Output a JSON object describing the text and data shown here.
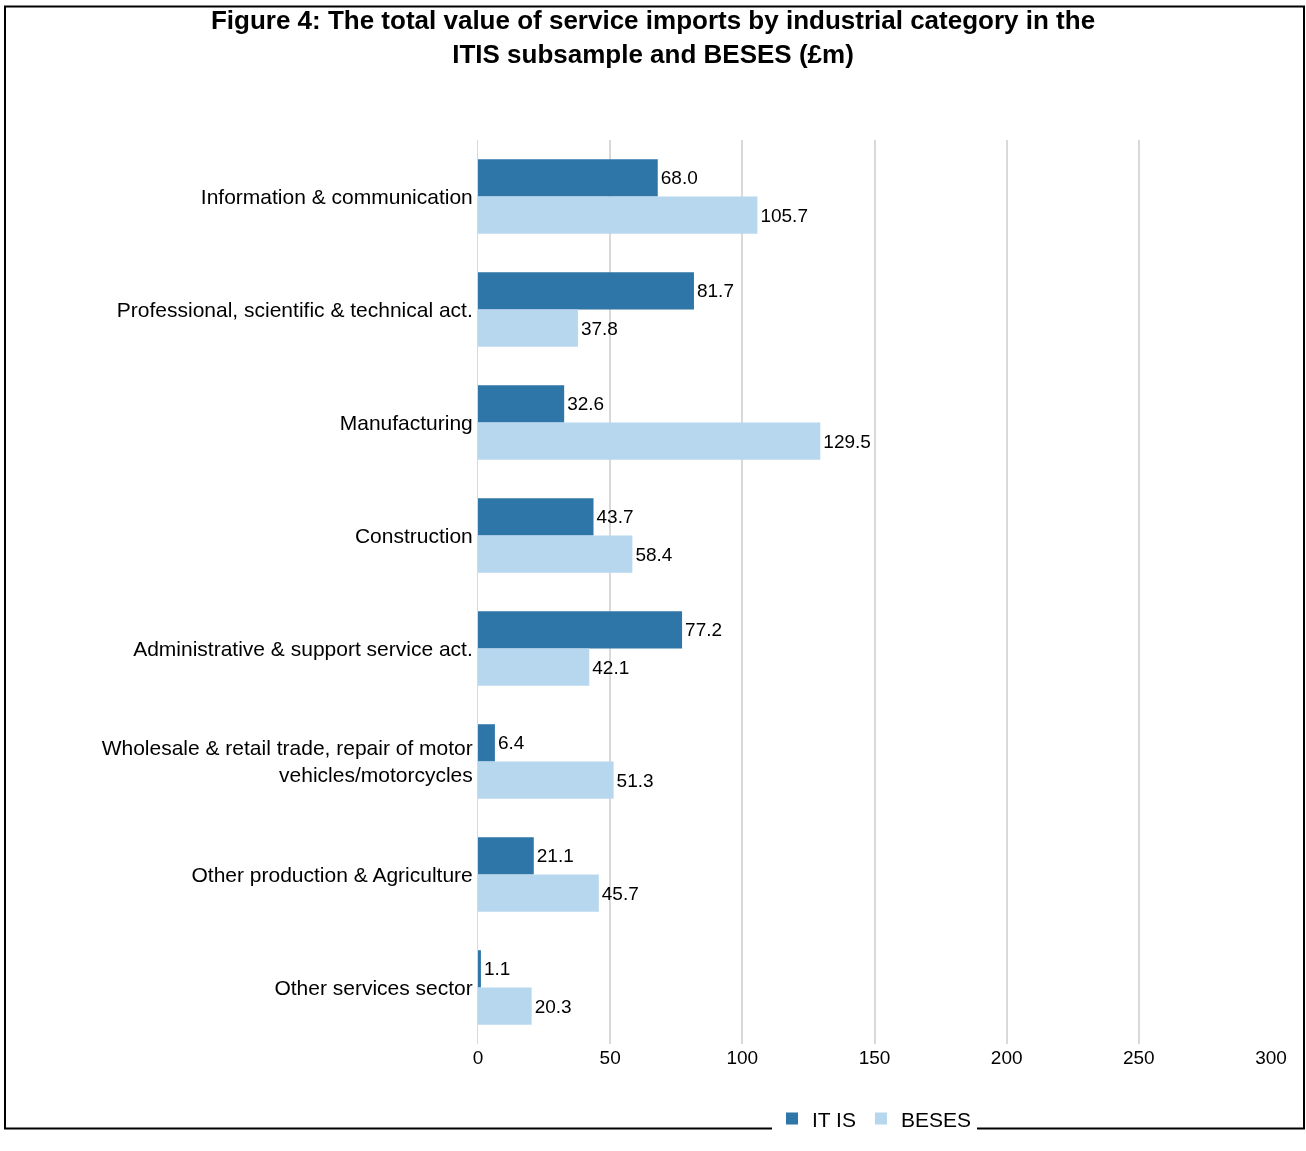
{
  "chart_data": {
    "type": "bar",
    "orientation": "horizontal",
    "title": "Figure 4: The total value of service imports by industrial category in the ITIS subsample and BESES (£m)",
    "categories": [
      "Information & communication",
      "Professional, scientific & technical act.",
      "Manufacturing",
      "Construction",
      "Administrative & support service act.",
      "Wholesale & retail trade, repair of motor vehicles/motorcycles",
      "Other production & Agriculture",
      "Other services sector"
    ],
    "series": [
      {
        "name": "IT IS",
        "color": "#2e75a8",
        "values": [
          68.0,
          81.7,
          32.6,
          43.7,
          77.2,
          6.4,
          21.1,
          1.1
        ],
        "value_labels": [
          "68.0",
          "81.7",
          "32.6",
          "43.7",
          "77.2",
          "6.4",
          "21.1",
          "1.1"
        ]
      },
      {
        "name": "BESES",
        "color": "#b7d7ee",
        "values": [
          105.7,
          37.8,
          129.5,
          58.4,
          42.1,
          51.3,
          45.7,
          20.3
        ],
        "value_labels": [
          "105.7",
          "37.8",
          "129.5",
          "58.4",
          "42.1",
          "51.3",
          "45.7",
          "20.3"
        ]
      }
    ],
    "xlim": [
      0,
      300
    ],
    "xticks": [
      0,
      50,
      100,
      150,
      200,
      250,
      300
    ],
    "grid": "x",
    "legend": "bottom"
  }
}
